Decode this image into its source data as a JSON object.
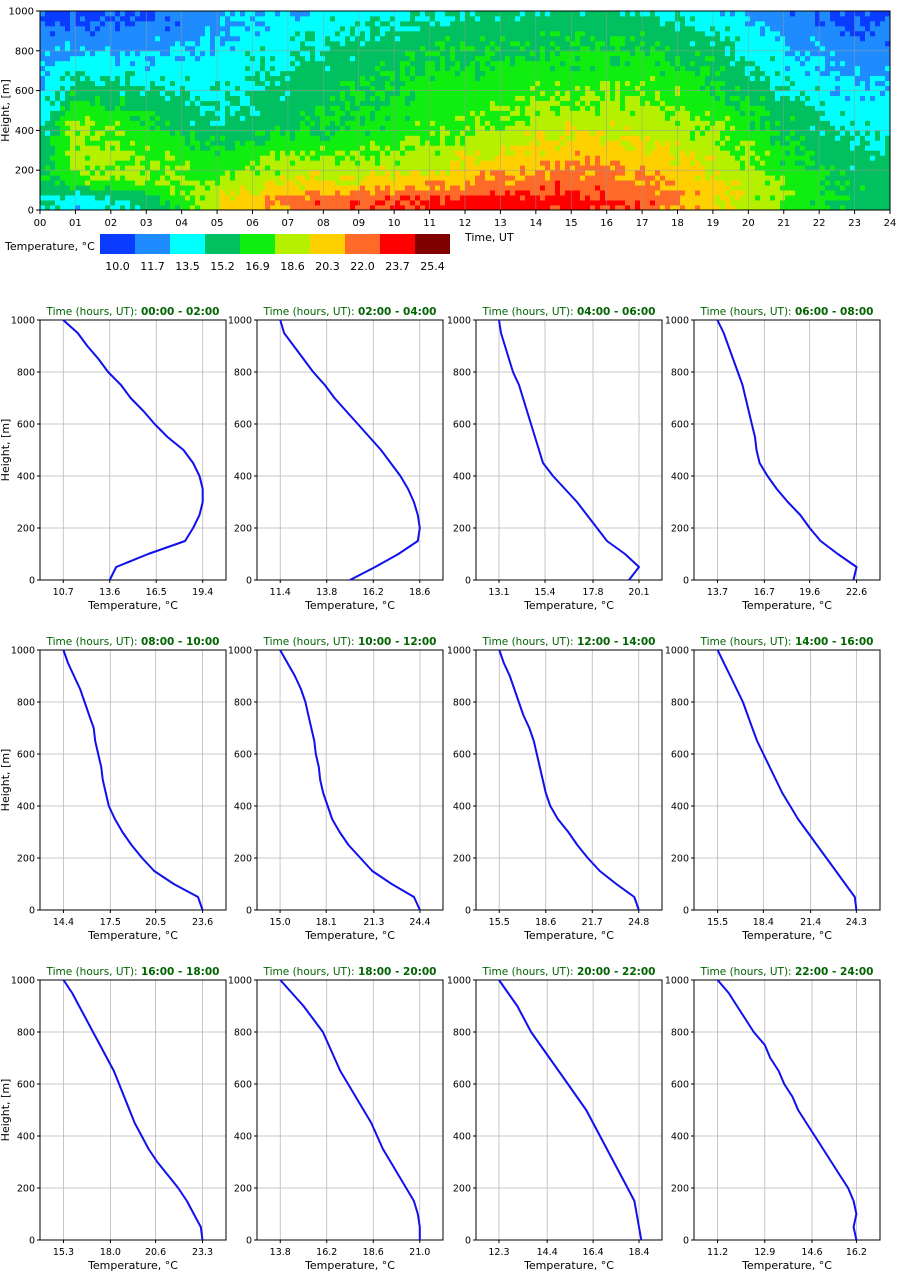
{
  "chart_data": [
    {
      "type": "heatmap",
      "xlabel": "Time, UT",
      "ylabel": "Height, [m]",
      "xlim": [
        0,
        24
      ],
      "ylim": [
        0,
        1000
      ],
      "x_ticks": [
        "00",
        "01",
        "02",
        "03",
        "04",
        "05",
        "06",
        "07",
        "08",
        "09",
        "10",
        "11",
        "12",
        "13",
        "14",
        "15",
        "16",
        "17",
        "18",
        "19",
        "20",
        "21",
        "22",
        "23",
        "24"
      ],
      "y_ticks": [
        "0",
        "200",
        "400",
        "600",
        "800",
        "1000"
      ],
      "grid": true,
      "time_hours": [
        0,
        2,
        4,
        6,
        8,
        10,
        12,
        14,
        16,
        18,
        20,
        22,
        24
      ],
      "height_levels": [
        0,
        50,
        100,
        150,
        200,
        250,
        300,
        350,
        400,
        450,
        500,
        550,
        600,
        650,
        700,
        750,
        800,
        850,
        900,
        950,
        1000
      ],
      "legend": {
        "title": "Temperature, °C",
        "placement": "bottom-left",
        "colors": [
          "#0a3cff",
          "#1e8cff",
          "#00ffff",
          "#00c060",
          "#10ee10",
          "#b4f000",
          "#ffd000",
          "#ff6a28",
          "#ff0000",
          "#800000"
        ],
        "boundaries": [
          10.0,
          11.7,
          13.5,
          15.2,
          16.9,
          18.6,
          20.3,
          22.0,
          23.7,
          25.4
        ],
        "boundary_labels": [
          "10.0",
          "11.7",
          "13.5",
          "15.2",
          "16.9",
          "18.6",
          "20.3",
          "22.0",
          "23.7",
          "25.4"
        ]
      }
    },
    {
      "type": "line",
      "title_label": "Time (hours, UT):",
      "title_range": "00:00 - 02:00",
      "xlabel": "Temperature, °C",
      "ylabel": "Height, [m]",
      "ylim": [
        0,
        1000
      ],
      "xlim": [
        9.25,
        20.85
      ],
      "x_ticks": [
        10.7,
        13.6,
        16.5,
        19.4
      ],
      "x_tick_labels": [
        "10.7",
        "13.6",
        "16.5",
        "19.4"
      ],
      "y_ticks": [
        "0",
        "200",
        "400",
        "600",
        "800",
        "1000"
      ],
      "height": [
        0,
        50,
        100,
        150,
        200,
        250,
        300,
        350,
        400,
        450,
        500,
        550,
        600,
        650,
        700,
        750,
        800,
        850,
        900,
        950,
        1000
      ],
      "temperature": [
        13.6,
        14.0,
        16.0,
        18.3,
        18.8,
        19.2,
        19.4,
        19.4,
        19.2,
        18.8,
        18.2,
        17.2,
        16.4,
        15.7,
        14.9,
        14.3,
        13.5,
        12.9,
        12.2,
        11.6,
        10.7
      ]
    },
    {
      "type": "line",
      "title_label": "Time (hours, UT):",
      "title_range": "02:00 - 04:00",
      "xlabel": "Temperature, °C",
      "ylabel": "Height, [m]",
      "ylim": [
        0,
        1000
      ],
      "xlim": [
        10.2,
        19.8
      ],
      "x_ticks": [
        11.4,
        13.8,
        16.2,
        18.6
      ],
      "x_tick_labels": [
        "11.4",
        "13.8",
        "16.2",
        "18.6"
      ],
      "y_ticks": [
        "0",
        "200",
        "400",
        "600",
        "800",
        "1000"
      ],
      "height": [
        0,
        50,
        100,
        150,
        200,
        250,
        300,
        350,
        400,
        450,
        500,
        550,
        600,
        650,
        700,
        750,
        800,
        850,
        900,
        950,
        1000
      ],
      "temperature": [
        15.0,
        16.3,
        17.5,
        18.5,
        18.6,
        18.5,
        18.3,
        18.0,
        17.6,
        17.1,
        16.6,
        16.0,
        15.4,
        14.8,
        14.2,
        13.7,
        13.1,
        12.6,
        12.1,
        11.6,
        11.4
      ]
    },
    {
      "type": "line",
      "title_label": "Time (hours, UT):",
      "title_range": "04:00 - 06:00",
      "xlabel": "Temperature, °C",
      "ylabel": "Height, [m]",
      "ylim": [
        0,
        1000
      ],
      "xlim": [
        11.95,
        21.25
      ],
      "x_ticks": [
        13.1,
        15.4,
        17.8,
        20.1
      ],
      "x_tick_labels": [
        "13.1",
        "15.4",
        "17.8",
        "20.1"
      ],
      "y_ticks": [
        "0",
        "200",
        "400",
        "600",
        "800",
        "1000"
      ],
      "height": [
        0,
        50,
        100,
        150,
        200,
        250,
        300,
        350,
        400,
        450,
        500,
        550,
        600,
        650,
        700,
        750,
        800,
        850,
        900,
        950,
        1000
      ],
      "temperature": [
        19.6,
        20.1,
        19.4,
        18.5,
        18.0,
        17.5,
        17.0,
        16.4,
        15.8,
        15.3,
        15.1,
        14.9,
        14.7,
        14.5,
        14.3,
        14.1,
        13.8,
        13.6,
        13.4,
        13.2,
        13.1
      ]
    },
    {
      "type": "line",
      "title_label": "Time (hours, UT):",
      "title_range": "06:00 - 08:00",
      "xlabel": "Temperature, °C",
      "ylabel": "Height, [m]",
      "ylim": [
        0,
        1000
      ],
      "xlim": [
        12.2,
        24.1
      ],
      "x_ticks": [
        13.7,
        16.7,
        19.6,
        22.6
      ],
      "x_tick_labels": [
        "13.7",
        "16.7",
        "19.6",
        "22.6"
      ],
      "y_ticks": [
        "0",
        "200",
        "400",
        "600",
        "800",
        "1000"
      ],
      "height": [
        0,
        50,
        100,
        150,
        200,
        250,
        300,
        350,
        400,
        450,
        500,
        550,
        600,
        650,
        700,
        750,
        800,
        850,
        900,
        950,
        1000
      ],
      "temperature": [
        22.4,
        22.6,
        21.4,
        20.3,
        19.6,
        19.0,
        18.2,
        17.5,
        16.9,
        16.4,
        16.2,
        16.1,
        15.9,
        15.7,
        15.5,
        15.3,
        15.0,
        14.7,
        14.4,
        14.1,
        13.7
      ]
    },
    {
      "type": "line",
      "title_label": "Time (hours, UT):",
      "title_range": "08:00 - 10:00",
      "xlabel": "Temperature, °C",
      "ylabel": "Height, [m]",
      "ylim": [
        0,
        1000
      ],
      "xlim": [
        12.85,
        25.15
      ],
      "x_ticks": [
        14.4,
        17.5,
        20.5,
        23.6
      ],
      "x_tick_labels": [
        "14.4",
        "17.5",
        "20.5",
        "23.6"
      ],
      "y_ticks": [
        "0",
        "200",
        "400",
        "600",
        "800",
        "1000"
      ],
      "height": [
        0,
        50,
        100,
        150,
        200,
        250,
        300,
        350,
        400,
        450,
        500,
        550,
        600,
        650,
        700,
        750,
        800,
        850,
        900,
        950,
        1000
      ],
      "temperature": [
        23.6,
        23.3,
        21.7,
        20.4,
        19.6,
        18.9,
        18.3,
        17.8,
        17.4,
        17.2,
        17.0,
        16.9,
        16.7,
        16.5,
        16.4,
        16.1,
        15.8,
        15.5,
        15.1,
        14.7,
        14.4
      ]
    },
    {
      "type": "line",
      "title_label": "Time (hours, UT):",
      "title_range": "10:00 - 12:00",
      "xlabel": "Temperature, °C",
      "ylabel": "Height, [m]",
      "ylim": [
        0,
        1000
      ],
      "xlim": [
        13.45,
        25.95
      ],
      "x_ticks": [
        15.0,
        18.1,
        21.3,
        24.4
      ],
      "x_tick_labels": [
        "15.0",
        "18.1",
        "21.3",
        "24.4"
      ],
      "y_ticks": [
        "0",
        "200",
        "400",
        "600",
        "800",
        "1000"
      ],
      "height": [
        0,
        50,
        100,
        150,
        200,
        250,
        300,
        350,
        400,
        450,
        500,
        550,
        600,
        650,
        700,
        750,
        800,
        850,
        900,
        950,
        1000
      ],
      "temperature": [
        24.4,
        24.0,
        22.5,
        21.2,
        20.4,
        19.6,
        19.0,
        18.5,
        18.2,
        17.9,
        17.7,
        17.6,
        17.4,
        17.3,
        17.1,
        16.9,
        16.7,
        16.4,
        16.0,
        15.5,
        15.0
      ]
    },
    {
      "type": "line",
      "title_label": "Time (hours, UT):",
      "title_range": "12:00 - 14:00",
      "xlabel": "Temperature, °C",
      "ylabel": "Height, [m]",
      "ylim": [
        0,
        1000
      ],
      "xlim": [
        13.95,
        26.35
      ],
      "x_ticks": [
        15.5,
        18.6,
        21.7,
        24.8
      ],
      "x_tick_labels": [
        "15.5",
        "18.6",
        "21.7",
        "24.8"
      ],
      "y_ticks": [
        "0",
        "200",
        "400",
        "600",
        "800",
        "1000"
      ],
      "height": [
        0,
        50,
        100,
        150,
        200,
        250,
        300,
        350,
        400,
        450,
        500,
        550,
        600,
        650,
        700,
        750,
        800,
        850,
        900,
        950,
        1000
      ],
      "temperature": [
        24.8,
        24.5,
        23.3,
        22.2,
        21.4,
        20.7,
        20.1,
        19.4,
        18.9,
        18.6,
        18.4,
        18.2,
        18.0,
        17.8,
        17.5,
        17.1,
        16.8,
        16.5,
        16.2,
        15.8,
        15.5
      ]
    },
    {
      "type": "line",
      "title_label": "Time (hours, UT):",
      "title_range": "14:00 - 16:00",
      "xlabel": "Temperature, °C",
      "ylabel": "Height, [m]",
      "ylim": [
        0,
        1000
      ],
      "xlim": [
        14.0,
        25.8
      ],
      "x_ticks": [
        15.5,
        18.4,
        21.4,
        24.3
      ],
      "x_tick_labels": [
        "15.5",
        "18.4",
        "21.4",
        "24.3"
      ],
      "y_ticks": [
        "0",
        "200",
        "400",
        "600",
        "800",
        "1000"
      ],
      "height": [
        0,
        50,
        100,
        150,
        200,
        250,
        300,
        350,
        400,
        450,
        500,
        550,
        600,
        650,
        700,
        750,
        800,
        850,
        900,
        950,
        1000
      ],
      "temperature": [
        24.3,
        24.2,
        23.6,
        23.0,
        22.4,
        21.8,
        21.2,
        20.6,
        20.1,
        19.6,
        19.2,
        18.8,
        18.4,
        18.0,
        17.7,
        17.4,
        17.1,
        16.7,
        16.3,
        15.9,
        15.5
      ]
    },
    {
      "type": "line",
      "title_label": "Time (hours, UT):",
      "title_range": "16:00 - 18:00",
      "xlabel": "Temperature, °C",
      "ylabel": "Height, [m]",
      "ylim": [
        0,
        1000
      ],
      "xlim": [
        13.95,
        24.65
      ],
      "x_ticks": [
        15.3,
        18.0,
        20.6,
        23.3
      ],
      "x_tick_labels": [
        "15.3",
        "18.0",
        "20.6",
        "23.3"
      ],
      "y_ticks": [
        "0",
        "200",
        "400",
        "600",
        "800",
        "1000"
      ],
      "height": [
        0,
        50,
        100,
        150,
        200,
        250,
        300,
        350,
        400,
        450,
        500,
        550,
        600,
        650,
        700,
        750,
        800,
        850,
        900,
        950,
        1000
      ],
      "temperature": [
        23.3,
        23.2,
        22.8,
        22.4,
        21.9,
        21.3,
        20.7,
        20.2,
        19.8,
        19.4,
        19.1,
        18.8,
        18.5,
        18.2,
        17.8,
        17.4,
        17.0,
        16.6,
        16.2,
        15.8,
        15.3
      ]
    },
    {
      "type": "line",
      "title_label": "Time (hours, UT):",
      "title_range": "18:00 - 20:00",
      "xlabel": "Temperature, °C",
      "ylabel": "Height, [m]",
      "ylim": [
        0,
        1000
      ],
      "xlim": [
        12.6,
        22.2
      ],
      "x_ticks": [
        13.8,
        16.2,
        18.6,
        21.0
      ],
      "x_tick_labels": [
        "13.8",
        "16.2",
        "18.6",
        "21.0"
      ],
      "y_ticks": [
        "0",
        "200",
        "400",
        "600",
        "800",
        "1000"
      ],
      "height": [
        0,
        50,
        100,
        150,
        200,
        250,
        300,
        350,
        400,
        450,
        500,
        550,
        600,
        650,
        700,
        750,
        800,
        850,
        900,
        950,
        1000
      ],
      "temperature": [
        21.0,
        21.0,
        20.9,
        20.7,
        20.3,
        19.9,
        19.5,
        19.1,
        18.8,
        18.5,
        18.1,
        17.7,
        17.3,
        16.9,
        16.6,
        16.3,
        16.0,
        15.5,
        15.0,
        14.4,
        13.8
      ]
    },
    {
      "type": "line",
      "title_label": "Time (hours, UT):",
      "title_range": "20:00 - 22:00",
      "xlabel": "Temperature, °C",
      "ylabel": "Height, [m]",
      "ylim": [
        0,
        1000
      ],
      "xlim": [
        11.3,
        19.4
      ],
      "x_ticks": [
        12.3,
        14.4,
        16.4,
        18.4
      ],
      "x_tick_labels": [
        "12.3",
        "14.4",
        "16.4",
        "18.4"
      ],
      "y_ticks": [
        "0",
        "200",
        "400",
        "600",
        "800",
        "1000"
      ],
      "height": [
        0,
        50,
        100,
        150,
        200,
        250,
        300,
        350,
        400,
        450,
        500,
        550,
        600,
        650,
        700,
        750,
        800,
        850,
        900,
        950,
        1000
      ],
      "temperature": [
        18.5,
        18.4,
        18.3,
        18.2,
        17.9,
        17.6,
        17.3,
        17.0,
        16.7,
        16.4,
        16.1,
        15.7,
        15.3,
        14.9,
        14.5,
        14.1,
        13.7,
        13.4,
        13.1,
        12.7,
        12.3
      ]
    },
    {
      "type": "line",
      "title_label": "Time (hours, UT):",
      "title_range": "22:00 - 24:00",
      "xlabel": "Temperature, °C",
      "ylabel": "Height, [m]",
      "ylim": [
        0,
        1000
      ],
      "xlim": [
        10.35,
        17.05
      ],
      "x_ticks": [
        11.2,
        12.9,
        14.6,
        16.2
      ],
      "x_tick_labels": [
        "11.2",
        "12.9",
        "14.6",
        "16.2"
      ],
      "y_ticks": [
        "0",
        "200",
        "400",
        "600",
        "800",
        "1000"
      ],
      "height": [
        0,
        50,
        100,
        150,
        200,
        250,
        300,
        350,
        400,
        450,
        500,
        550,
        600,
        650,
        700,
        750,
        800,
        850,
        900,
        950,
        1000
      ],
      "temperature": [
        16.2,
        16.1,
        16.2,
        16.1,
        15.9,
        15.6,
        15.3,
        15.0,
        14.7,
        14.4,
        14.1,
        13.9,
        13.6,
        13.4,
        13.1,
        12.9,
        12.5,
        12.2,
        11.9,
        11.6,
        11.2
      ]
    }
  ]
}
